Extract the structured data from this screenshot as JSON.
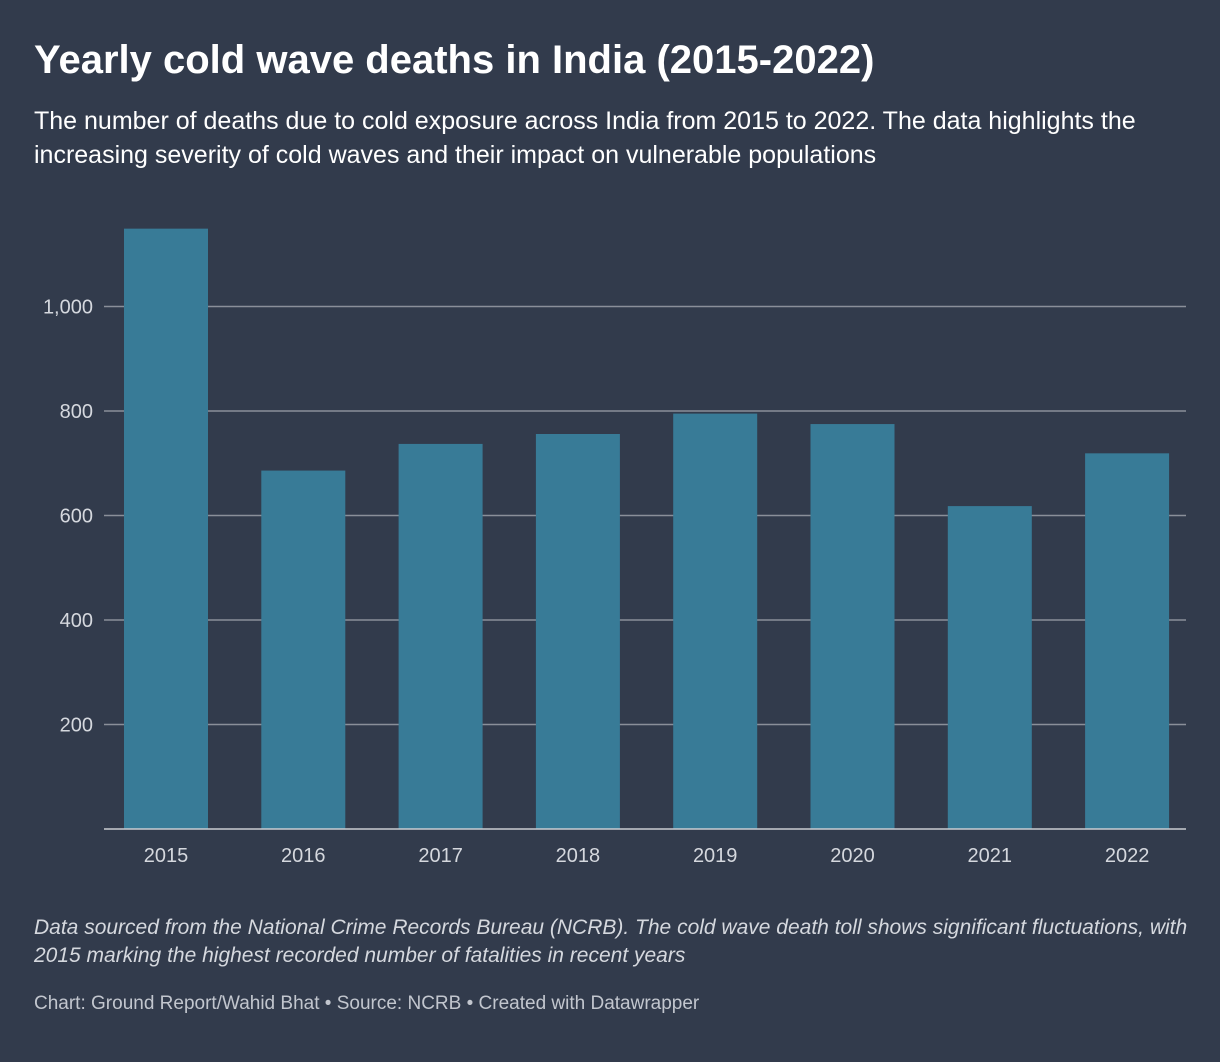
{
  "header": {
    "title": "Yearly cold wave deaths in India (2015-2022)",
    "subtitle": "The number of deaths due to cold exposure across India from 2015 to 2022. The data highlights the increasing severity of cold waves and their impact on vulnerable populations"
  },
  "footer": {
    "notes": "Data sourced from the National Crime Records Bureau (NCRB). The cold wave death toll shows significant fluctuations, with 2015 marking the highest recorded number of fatalities in recent years",
    "credit_chart": "Chart: Ground Report/Wahid Bhat",
    "credit_source": "Source: NCRB",
    "credit_tool": "Created with Datawrapper",
    "separator": "•"
  },
  "colors": {
    "background": "#323b4c",
    "bar": "#387b97",
    "grid": "#8a8f99",
    "tick_text": "#d5d8de"
  },
  "chart_data": {
    "type": "bar",
    "categories": [
      "2015",
      "2016",
      "2017",
      "2018",
      "2019",
      "2020",
      "2021",
      "2022"
    ],
    "values": [
      1149,
      686,
      737,
      756,
      795,
      775,
      618,
      719
    ],
    "ylim": [
      0,
      1150
    ],
    "yticks": [
      200,
      400,
      600,
      800,
      1000
    ],
    "ytick_labels": [
      "200",
      "400",
      "600",
      "800",
      "1,000"
    ],
    "grid": true,
    "xlabel": "",
    "ylabel": ""
  }
}
